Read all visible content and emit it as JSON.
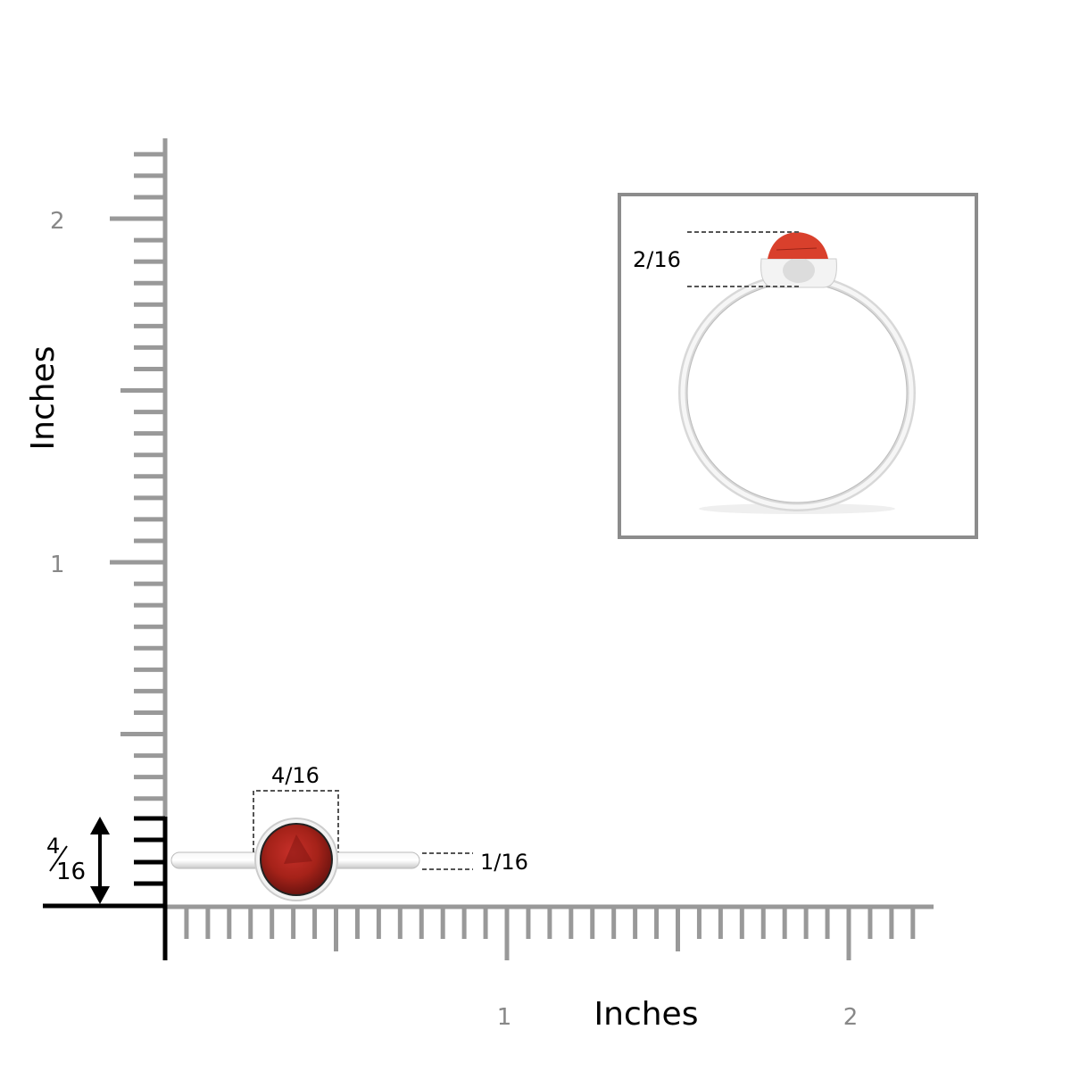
{
  "vertical_ruler": {
    "axis_label": "Inches",
    "tick_labels": [
      "1",
      "2"
    ],
    "subdivisions_per_inch": 16
  },
  "horizontal_ruler": {
    "axis_label": "Inches",
    "tick_labels": [
      "1",
      "2"
    ],
    "subdivisions_per_inch": 16
  },
  "dimensions": {
    "stone_width": "4/16",
    "band_width": "1/16",
    "ring_height_numerator": "4",
    "ring_height_denominator": "16",
    "setting_height": "2/16"
  },
  "colors": {
    "ruler_gray": "#999999",
    "ruler_black": "#000000",
    "stone": "#a52219",
    "stone_side": "#d9402c",
    "metal": "#e6e6e6",
    "frame": "#8c8c8c"
  }
}
